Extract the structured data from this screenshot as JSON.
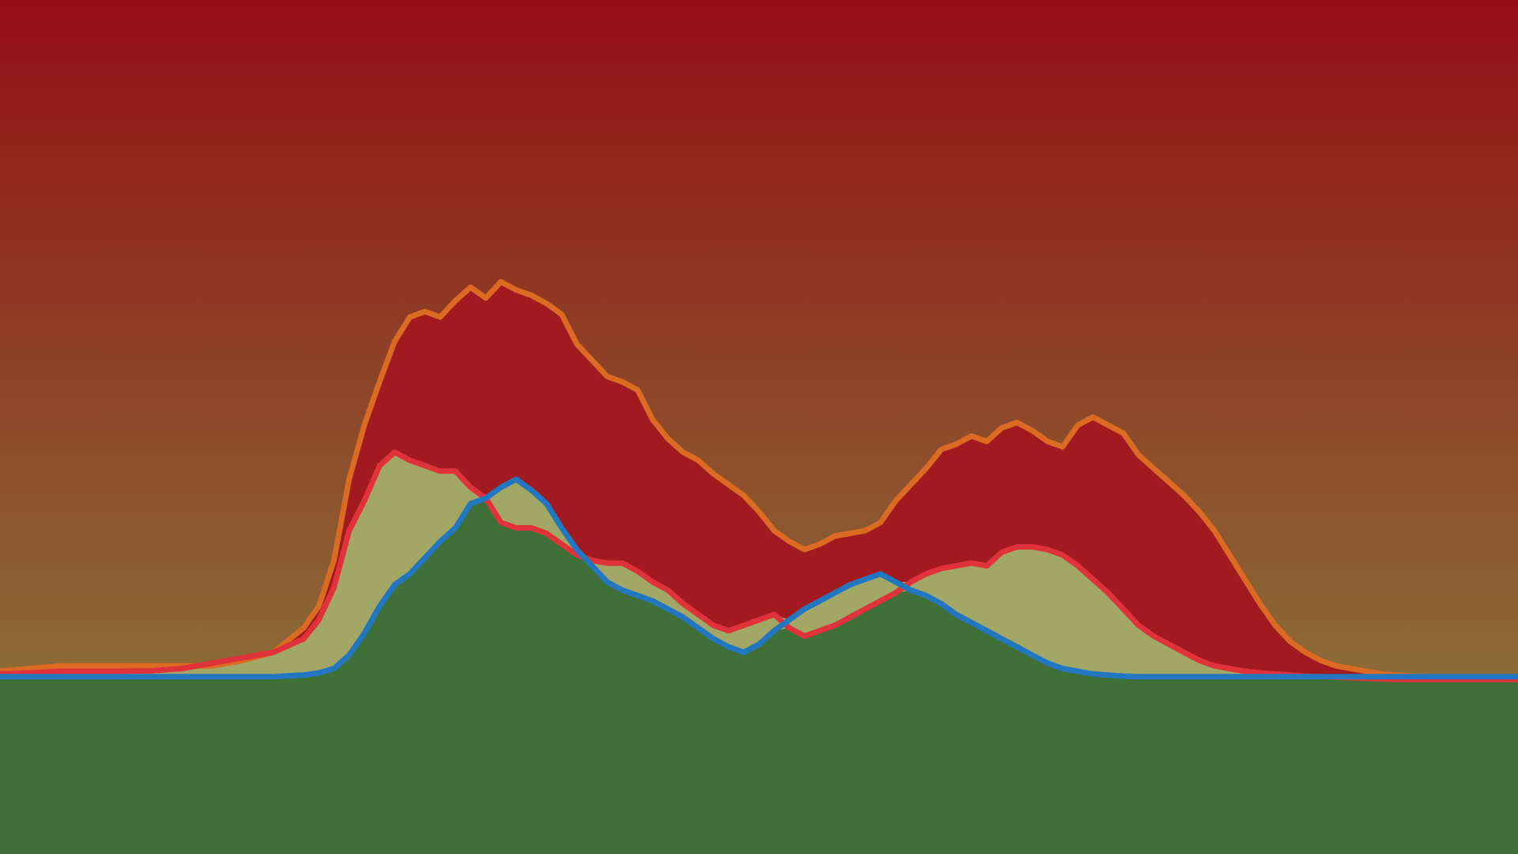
{
  "colors": {
    "background_top": "#950e16",
    "background_mid": "#8f3a24",
    "background_bottom": "#8b6d37",
    "ground_fill": "#3f7038",
    "upper_band_fill": "#a2191f",
    "lower_band_fill": "#a2a766",
    "orange_line": "#db6b22",
    "red_line": "#e0323a",
    "blue_line": "#2377c0"
  },
  "chart_data": {
    "type": "area",
    "title": "",
    "xlabel": "",
    "ylabel": "",
    "grid": false,
    "legend": "none",
    "xlim": [
      0,
      100
    ],
    "ylim": [
      0,
      100
    ],
    "x": [
      0,
      2,
      4,
      6,
      8,
      10,
      12,
      14,
      16,
      18,
      20,
      21,
      22,
      23,
      24,
      25,
      26,
      27,
      28,
      29,
      30,
      31,
      32,
      33,
      34,
      35,
      36,
      37,
      38,
      39,
      40,
      41,
      42,
      43,
      44,
      45,
      46,
      47,
      48,
      49,
      50,
      51,
      52,
      53,
      54,
      55,
      56,
      57,
      58,
      59,
      60,
      61,
      62,
      63,
      64,
      65,
      66,
      67,
      68,
      69,
      70,
      71,
      72,
      73,
      74,
      75,
      76,
      77,
      78,
      79,
      80,
      81,
      82,
      83,
      84,
      85,
      86,
      87,
      88,
      89,
      90,
      91,
      92,
      93,
      94,
      95,
      96,
      97,
      98,
      99,
      100
    ],
    "series": [
      {
        "color_key": "orange_line",
        "values": [
          2.5,
          3.0,
          3.5,
          3.5,
          3.5,
          3.5,
          3.5,
          3.5,
          4.5,
          6.0,
          10.5,
          14.5,
          23.0,
          38.0,
          48.0,
          56.0,
          63.5,
          68.0,
          69.0,
          68.0,
          71.0,
          73.5,
          71.5,
          74.5,
          73.0,
          72.0,
          70.5,
          68.5,
          63.0,
          60.0,
          57.0,
          56.0,
          54.5,
          49.0,
          45.5,
          43.0,
          41.5,
          39.0,
          37.0,
          35.0,
          32.0,
          28.5,
          26.5,
          25.0,
          26.0,
          27.5,
          28.0,
          28.5,
          30.0,
          34.0,
          37.0,
          40.0,
          43.5,
          44.5,
          46.0,
          45.0,
          47.5,
          48.5,
          47.0,
          45.0,
          44.0,
          48.0,
          49.5,
          48.0,
          46.5,
          42.5,
          40.0,
          37.5,
          35.0,
          32.0,
          28.5,
          24.0,
          19.5,
          15.0,
          11.0,
          8.0,
          6.0,
          4.5,
          3.5,
          3.0,
          2.5,
          2.0,
          1.8,
          1.6,
          1.5,
          1.4,
          1.3,
          1.2,
          1.1,
          1.0,
          1.0
        ]
      },
      {
        "color_key": "red_line",
        "values": [
          2.0,
          2.2,
          2.5,
          2.5,
          2.5,
          2.6,
          3.0,
          4.0,
          5.0,
          6.0,
          8.5,
          12.0,
          18.0,
          28.5,
          34.0,
          40.5,
          43.0,
          41.5,
          40.5,
          39.5,
          39.5,
          36.5,
          34.5,
          30.0,
          29.0,
          29.0,
          28.0,
          26.0,
          24.0,
          23.0,
          22.5,
          22.5,
          21.0,
          19.0,
          17.5,
          15.0,
          13.0,
          11.0,
          10.0,
          11.0,
          12.0,
          13.0,
          10.5,
          9.0,
          10.0,
          11.0,
          12.5,
          14.0,
          15.5,
          17.0,
          19.0,
          20.5,
          21.5,
          22.0,
          22.5,
          22.0,
          24.5,
          25.5,
          25.5,
          25.0,
          24.0,
          22.0,
          19.5,
          17.0,
          14.0,
          11.0,
          9.0,
          7.5,
          6.0,
          4.5,
          3.5,
          3.0,
          2.5,
          2.2,
          2.0,
          1.8,
          1.6,
          1.5,
          1.4,
          1.3,
          1.2,
          1.1,
          1.0,
          1.0,
          1.0,
          1.0,
          1.0,
          1.0,
          1.0,
          1.0,
          1.0
        ]
      },
      {
        "color_key": "blue_line",
        "values": [
          1.5,
          1.5,
          1.5,
          1.5,
          1.5,
          1.5,
          1.5,
          1.5,
          1.5,
          1.5,
          1.8,
          2.2,
          3.0,
          5.5,
          9.5,
          14.5,
          18.5,
          20.5,
          23.5,
          26.5,
          29.0,
          33.5,
          34.5,
          36.5,
          38.0,
          36.0,
          33.5,
          29.0,
          25.0,
          22.0,
          19.0,
          17.5,
          16.5,
          15.5,
          14.0,
          12.5,
          10.5,
          8.5,
          7.0,
          6.0,
          7.5,
          10.0,
          12.0,
          14.0,
          15.5,
          17.0,
          18.5,
          19.5,
          20.5,
          19.0,
          17.5,
          16.5,
          15.0,
          13.0,
          11.5,
          10.0,
          8.5,
          7.0,
          5.5,
          4.0,
          3.0,
          2.5,
          2.0,
          1.8,
          1.6,
          1.5,
          1.5,
          1.5,
          1.5,
          1.5,
          1.5,
          1.5,
          1.5,
          1.5,
          1.5,
          1.5,
          1.5,
          1.5,
          1.5,
          1.5,
          1.5,
          1.5,
          1.5,
          1.5,
          1.5,
          1.5,
          1.5,
          1.5,
          1.5,
          1.5,
          1.5
        ]
      }
    ]
  }
}
